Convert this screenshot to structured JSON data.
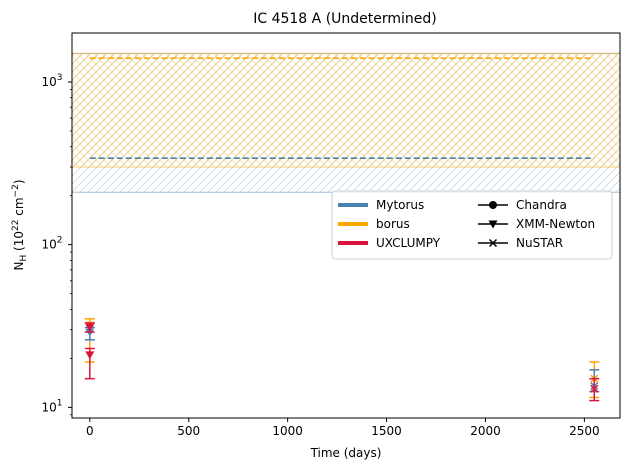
{
  "chart_data": {
    "type": "scatter",
    "title": "IC 4518 A (Undetermined)",
    "xlabel": "Time (days)",
    "ylabel": "N_H (10^22 cm^-2)",
    "ylabel_parts": {
      "base": "N",
      "sub": "H",
      "open": " (10",
      "sup1": "22",
      "mid": " cm",
      "sup2": "−2",
      "close": ")"
    },
    "xlim": [
      -90,
      2680
    ],
    "ylim": [
      8.6,
      2000
    ],
    "yscale": "log",
    "grid": false,
    "legend_position": "right, upper-middle",
    "x_ticks": [
      0,
      500,
      1000,
      1500,
      2000,
      2500
    ],
    "y_ticks": [
      {
        "value": 10,
        "base": "10",
        "exp": "1"
      },
      {
        "value": 100,
        "base": "10",
        "exp": "2"
      },
      {
        "value": 1000,
        "base": "10",
        "exp": "3"
      }
    ],
    "models": [
      {
        "name": "Mytorus",
        "color": "#4682b4",
        "line_value": 340,
        "band": [
          210,
          1500
        ]
      },
      {
        "name": "borus",
        "color": "#ffa500",
        "line_value": 1400,
        "band": [
          300,
          1500
        ]
      },
      {
        "name": "UXCLUMPY",
        "color": "#dc143c"
      }
    ],
    "line_span": [
      0,
      2550
    ],
    "instruments": [
      {
        "name": "Chandra",
        "marker": "circle"
      },
      {
        "name": "XMM-Newton",
        "marker": "triangle-down"
      },
      {
        "name": "NuSTAR",
        "marker": "x"
      }
    ],
    "points": [
      {
        "model": "Mytorus",
        "instrument": "XMM-Newton",
        "x": 0,
        "y": 29,
        "err": [
          26,
          31
        ]
      },
      {
        "model": "borus",
        "instrument": "XMM-Newton",
        "x": 0,
        "y": 32,
        "err": [
          19,
          35
        ]
      },
      {
        "model": "UXCLUMPY",
        "instrument": "XMM-Newton",
        "x": 0,
        "y": 31,
        "err": [
          29,
          33
        ]
      },
      {
        "model": "UXCLUMPY",
        "instrument": "XMM-Newton",
        "x": 0,
        "y": 21,
        "err": [
          15,
          23
        ]
      },
      {
        "model": "Mytorus",
        "instrument": "NuSTAR",
        "x": 2550,
        "y": 13.5,
        "err": [
          12.5,
          17
        ]
      },
      {
        "model": "borus",
        "instrument": "NuSTAR",
        "x": 2550,
        "y": 15,
        "err": [
          11.5,
          19
        ]
      },
      {
        "model": "UXCLUMPY",
        "instrument": "NuSTAR",
        "x": 2550,
        "y": 13,
        "err": [
          11,
          15
        ]
      }
    ]
  }
}
